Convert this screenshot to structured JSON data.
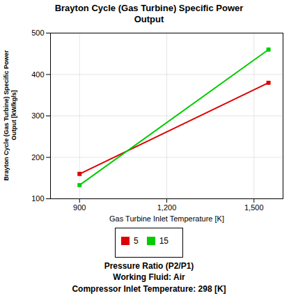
{
  "chart_data": {
    "type": "line",
    "title": "Brayton Cycle (Gas Turbine) Specific Power\nOutput",
    "xlabel": "Gas Turbine Inlet Temperature [K]",
    "ylabel": "Brayton Cycle (Gas Turbine) Specific Power\nOutput [kW/kg/s]",
    "xlim": [
      800,
      1600
    ],
    "ylim": [
      100,
      500
    ],
    "xticks": [
      900,
      {
        "value": 1200,
        "label": "1,200"
      },
      {
        "value": 1500,
        "label": "1,500"
      }
    ],
    "yticks": [
      100,
      200,
      300,
      400,
      500
    ],
    "grid": true,
    "legend": "bottom",
    "marker": "square",
    "series": [
      {
        "name": "5",
        "color": "#dd0000",
        "x": [
          900,
          1550
        ],
        "values": [
          160,
          380
        ]
      },
      {
        "name": "15",
        "color": "#00cc00",
        "x": [
          900,
          1550
        ],
        "values": [
          133,
          460
        ]
      }
    ],
    "annotations": [
      "Pressure Ratio (P2/P1)",
      "Working Fluid:  Air",
      "Compressor Inlet Temperature:  298 [K]"
    ]
  }
}
